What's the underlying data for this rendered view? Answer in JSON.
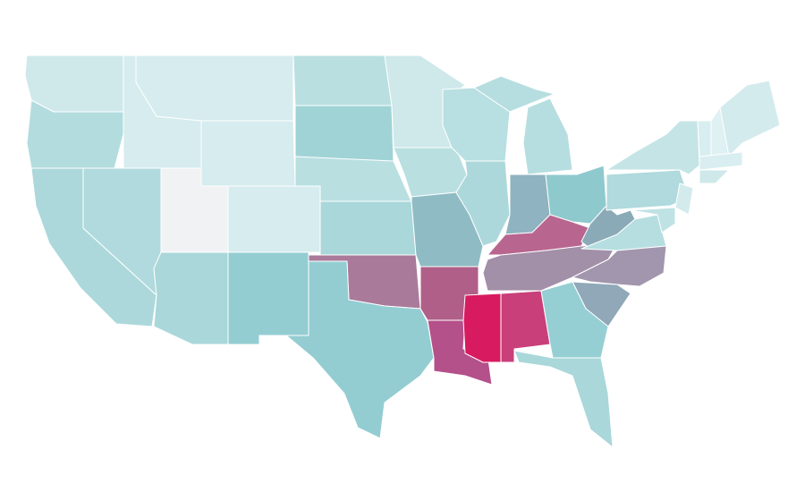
{
  "map": {
    "type": "choropleth",
    "background": "#ffffff",
    "border_color": "#ffffff",
    "region_colors": [
      "#cfe9eb",
      "#b3dcdf",
      "#acd8db",
      "#b0dadd",
      "#d6ecee",
      "#d6ecee",
      "#d6ecee",
      "#f1f2f4",
      "#d6ecee",
      "#a9d7da",
      "#93cdd2",
      "#b9dfe1",
      "#a0d3d6",
      "#b9dfe1",
      "#a9d7da",
      "#a97a9a",
      "#93cdd2",
      "#cfe8ea",
      "#b9dfe1",
      "#8fbcc4",
      "#b06088",
      "#b4508a",
      "#d81b60",
      "#c93f7a",
      "#b8dfe1",
      "#acd8db",
      "#8fb3c0",
      "#b6dee0",
      "#b6dee0",
      "#8ec9cd",
      "#b86690",
      "#a28fa8",
      "#8aaab8",
      "#b6dee0",
      "#a196ad",
      "#90a8b8",
      "#96cfd3",
      "#a9d7da",
      "#b0dadd",
      "#c5e4e6",
      "#d8eef0",
      "#dff1f2",
      "#d4ebed",
      "#d9eef0",
      "#cfe8ea",
      "#d4ebed",
      "#bfe2e4"
    ]
  }
}
